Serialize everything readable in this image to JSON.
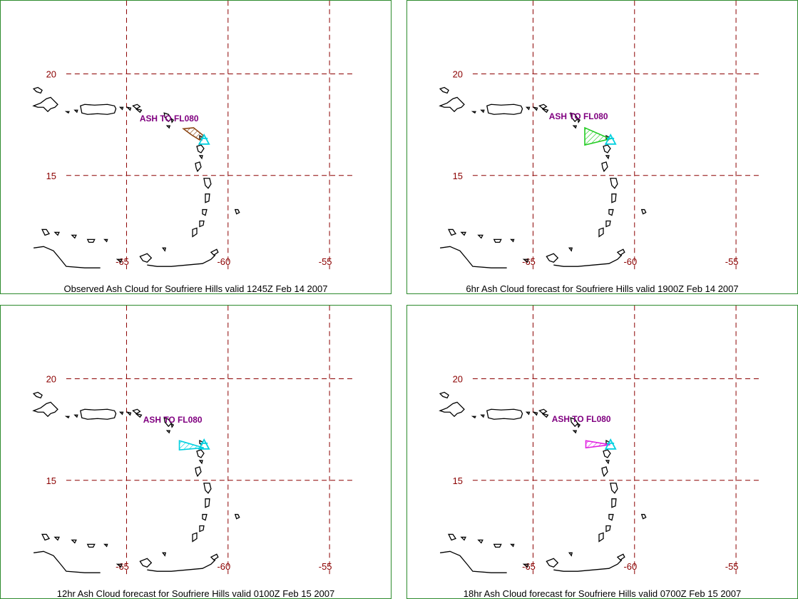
{
  "panels": [
    {
      "caption": "Observed Ash Cloud for Soufriere  Hills valid 1245Z Feb 14 2007",
      "ash_label": "ASH TO FL080",
      "cloud_color": "#8b4513",
      "cloud": [
        [
          -61.8,
          17.0
        ],
        [
          -62.2,
          17.3
        ],
        [
          -61.7,
          17.35
        ],
        [
          -61.2,
          16.95
        ],
        [
          -61.4,
          16.75
        ]
      ]
    },
    {
      "caption": "6hr Ash Cloud forecast for Soufriere  Hills valid 1900Z Feb 14 2007",
      "ash_label": "ASH TO FL080",
      "cloud_color": "#22cc22",
      "cloud": [
        [
          -62.45,
          17.35
        ],
        [
          -61.2,
          16.8
        ],
        [
          -62.45,
          16.5
        ]
      ]
    },
    {
      "caption": "12hr Ash Cloud forecast for Soufriere  Hills valid 0100Z Feb 15 2007",
      "ash_label": "ASH TO FL080",
      "cloud_color": "#00d0e0",
      "cloud": [
        [
          -62.4,
          16.95
        ],
        [
          -61.2,
          16.6
        ],
        [
          -62.4,
          16.5
        ]
      ]
    },
    {
      "caption": "18hr Ash Cloud forecast for Soufriere  Hills valid 0700Z Feb 15 2007",
      "ash_label": "ASH TO FL080",
      "cloud_color": "#e020e0",
      "cloud": [
        [
          -62.4,
          16.95
        ],
        [
          -61.2,
          16.75
        ],
        [
          -62.4,
          16.6
        ]
      ]
    }
  ],
  "map": {
    "lat_lines": [
      20,
      15
    ],
    "lon_lines": [
      -65,
      -60,
      -55
    ],
    "lat_labels": [
      "20",
      "15"
    ],
    "lon_labels": [
      "-65",
      "-60",
      "-55"
    ],
    "volcano": [
      -61.18,
      16.72
    ],
    "colors": {
      "grid": "#8b0000",
      "coast": "#000000",
      "border": "#2e8b2e",
      "volcano": "#00d0e0"
    }
  }
}
